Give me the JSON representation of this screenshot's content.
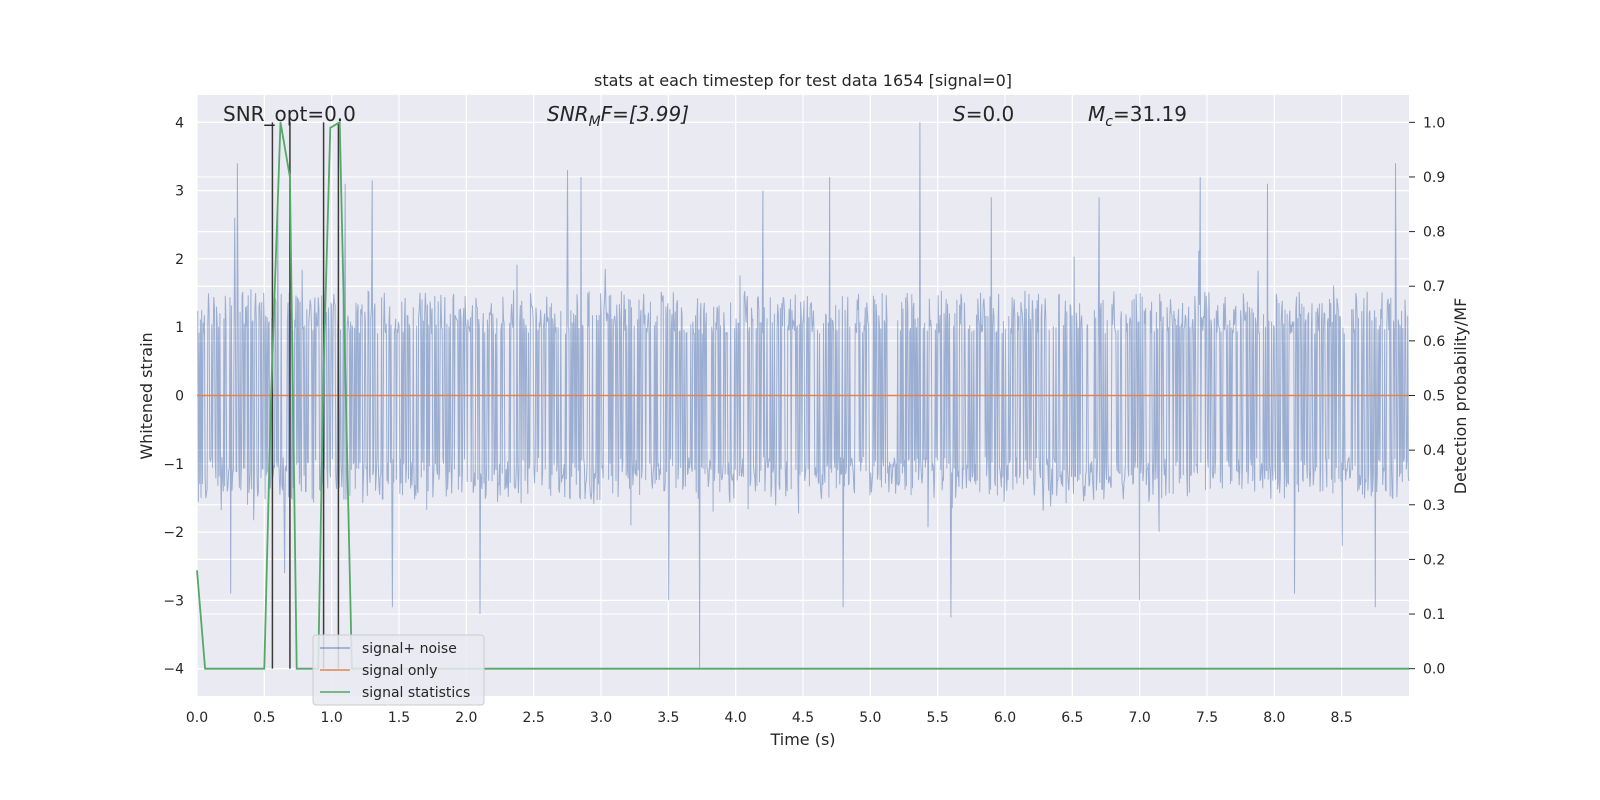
{
  "chart_data": {
    "type": "line",
    "title": "stats at each timestep for test data 1654 [signal=0]",
    "xlabel": "Time (s)",
    "ylabel": "Whitened strain",
    "y2label": "Detection probability/MF",
    "xlim": [
      0.0,
      9.0
    ],
    "ylim": [
      -4.4,
      4.4
    ],
    "y2lim": [
      -0.05,
      1.05
    ],
    "grid": true,
    "legend_position": "bottom-left",
    "x_ticks": [
      "0.0",
      "0.5",
      "1.0",
      "1.5",
      "2.0",
      "2.5",
      "3.0",
      "3.5",
      "4.0",
      "4.5",
      "5.0",
      "5.5",
      "6.0",
      "6.5",
      "7.0",
      "7.5",
      "8.0",
      "8.5"
    ],
    "x_tick_values": [
      0.0,
      0.5,
      1.0,
      1.5,
      2.0,
      2.5,
      3.0,
      3.5,
      4.0,
      4.5,
      5.0,
      5.5,
      6.0,
      6.5,
      7.0,
      7.5,
      8.0,
      8.5
    ],
    "y_ticks": [
      "4",
      "3",
      "2",
      "1",
      "0",
      "−1",
      "−2",
      "−3",
      "−4"
    ],
    "y_tick_values": [
      4,
      3,
      2,
      1,
      0,
      -1,
      -2,
      -3,
      -4
    ],
    "y2_ticks": [
      "1.0",
      "0.9",
      "0.8",
      "0.7",
      "0.6",
      "0.5",
      "0.4",
      "0.3",
      "0.2",
      "0.1",
      "0.0"
    ],
    "y2_tick_values": [
      1.0,
      0.9,
      0.8,
      0.7,
      0.6,
      0.5,
      0.4,
      0.3,
      0.2,
      0.1,
      0.0
    ],
    "annotations": {
      "snr_opt": "SNR_opt=0.0",
      "snr_mf_main": "SNR",
      "snr_mf_sub": "M",
      "snr_mf_rest": "F=[3.99]",
      "s_main": "S",
      "s_rest": "=0.0",
      "mc_main": "M",
      "mc_sub": "c",
      "mc_rest": "=31.19"
    },
    "series": [
      {
        "name": "signal+ noise",
        "color": "#4c72b0",
        "axis": "left",
        "description_only": false,
        "envelope_peaks": [
          {
            "x": 0.3,
            "y": 3.4
          },
          {
            "x": 0.28,
            "y": 2.6
          },
          {
            "x": 0.25,
            "y": -2.9
          },
          {
            "x": 0.6,
            "y": 2.9
          },
          {
            "x": 0.65,
            "y": -2.6
          },
          {
            "x": 1.1,
            "y": 3.1
          },
          {
            "x": 1.3,
            "y": 3.15
          },
          {
            "x": 1.45,
            "y": -3.1
          },
          {
            "x": 2.1,
            "y": -3.2
          },
          {
            "x": 2.75,
            "y": 3.3
          },
          {
            "x": 2.85,
            "y": 3.2
          },
          {
            "x": 3.5,
            "y": -3.0
          },
          {
            "x": 3.73,
            "y": -4.0
          },
          {
            "x": 4.2,
            "y": 3.0
          },
          {
            "x": 4.7,
            "y": 3.2
          },
          {
            "x": 4.8,
            "y": -3.1
          },
          {
            "x": 5.37,
            "y": 4.0
          },
          {
            "x": 5.6,
            "y": -3.25
          },
          {
            "x": 5.9,
            "y": 2.9
          },
          {
            "x": 6.7,
            "y": 2.9
          },
          {
            "x": 7.0,
            "y": -3.0
          },
          {
            "x": 7.45,
            "y": 3.2
          },
          {
            "x": 7.95,
            "y": 3.1
          },
          {
            "x": 8.15,
            "y": -2.9
          },
          {
            "x": 8.9,
            "y": 3.4
          },
          {
            "x": 8.75,
            "y": -3.1
          }
        ],
        "typical_amplitude": 1.6
      },
      {
        "name": "signal only",
        "color": "#dd8452",
        "axis": "left",
        "x": [
          0.0,
          9.0
        ],
        "y": [
          0.0,
          0.0
        ]
      },
      {
        "name": "signal statistics",
        "color": "#55a868",
        "axis": "right",
        "x": [
          0.0,
          0.06,
          0.12,
          0.5,
          0.55,
          0.62,
          0.69,
          0.74,
          0.9,
          0.94,
          0.99,
          1.06,
          1.15,
          1.2,
          9.0
        ],
        "y": [
          0.18,
          0.0,
          0.0,
          0.0,
          0.5,
          1.0,
          0.9,
          0.0,
          0.0,
          0.55,
          0.99,
          1.0,
          0.0,
          0.0,
          0.0
        ]
      }
    ],
    "vertical_markers": {
      "color": "#3a3a3a",
      "x": [
        0.56,
        0.69,
        0.94,
        1.05
      ]
    }
  }
}
